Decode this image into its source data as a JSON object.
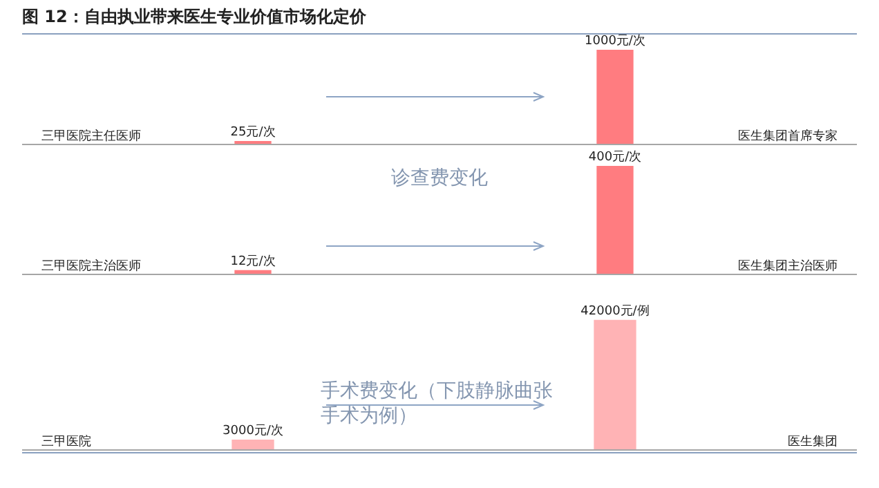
{
  "chart_data": [
    {
      "type": "bar",
      "title": "图 12：自由执业带来医生专业价值市场化定价",
      "categories": [
        "三甲医院主任医师",
        "医生集团首席专家"
      ],
      "values": [
        25,
        1000
      ],
      "value_labels": [
        "25元/次",
        "1000元/次"
      ],
      "color": "#ff7c80"
    },
    {
      "type": "bar",
      "categories": [
        "三甲医院主治医师",
        "医生集团主治医师"
      ],
      "values": [
        12,
        400
      ],
      "value_labels": [
        "12元/次",
        "400元/次"
      ],
      "color": "#ff7c80",
      "annotations": [
        "诊查费变化"
      ]
    },
    {
      "type": "bar",
      "categories": [
        "三甲医院",
        "医生集团"
      ],
      "values": [
        3000,
        42000
      ],
      "value_labels": [
        "3000元/次",
        "42000元/例"
      ],
      "color": "#ffb3b5",
      "annotations": [
        "手术费变化（下肢静脉曲张手术为例）"
      ]
    }
  ]
}
